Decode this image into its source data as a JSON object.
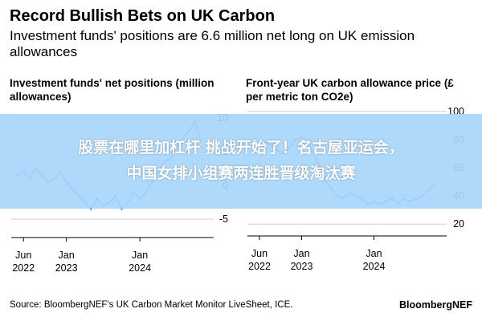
{
  "header": {
    "title": "Record Bullish Bets on UK Carbon",
    "subtitle": "Investment funds' positions are 6.6 million net long on UK emission allowances"
  },
  "banner": {
    "text": "股票在哪里加杠杆 挑战开始了！名古屋亚运会，\n中国女排小组赛两连胜晋级淘汰赛"
  },
  "footer": {
    "source": "Source: BloombergNEF's UK Carbon Market Monitor LiveSheet, ICE.",
    "brand": "BloombergNEF"
  },
  "colors": {
    "series": "#1e6cf0",
    "gridline": "#cfcfcf",
    "banner": "#a8d6fa"
  },
  "chart_data": [
    {
      "type": "line",
      "title": "Investment funds' net positions (million allowances)",
      "x_tick_labels": [
        [
          "Jun",
          "2022"
        ],
        [
          "Jan",
          "2023"
        ],
        [
          "Jan",
          "2024"
        ]
      ],
      "x_ticks": [
        "2022-06",
        "2023-01",
        "2024-01"
      ],
      "xlim": [
        "2022-04",
        "2024-12"
      ],
      "y_ticks": [
        10,
        5,
        0,
        -5
      ],
      "ylim": [
        -7,
        12
      ],
      "y_axis_side": "right",
      "series": [
        {
          "x": [
            "2022-05",
            "2022-06",
            "2022-07",
            "2022-08",
            "2022-09",
            "2022-10",
            "2022-11",
            "2022-12",
            "2023-01",
            "2023-02",
            "2023-03",
            "2023-04",
            "2023-05",
            "2023-06",
            "2023-07",
            "2023-08",
            "2023-09",
            "2023-10",
            "2023-11",
            "2023-12",
            "2024-01",
            "2024-02",
            "2024-03",
            "2024-04",
            "2024-05",
            "2024-06",
            "2024-07",
            "2024-08",
            "2024-09",
            "2024-10",
            "2024-11"
          ],
          "values": [
            1.5,
            2.0,
            1.0,
            2.5,
            1.5,
            0.5,
            1.0,
            2.0,
            0.5,
            -0.5,
            -1.5,
            -2.5,
            -3.5,
            -2.0,
            -3.0,
            -2.5,
            -1.5,
            -3.5,
            -2.5,
            -1.0,
            -2.0,
            -1.0,
            0.5,
            2.0,
            3.5,
            4.0,
            5.5,
            7.0,
            8.0,
            9.5,
            6.6
          ]
        }
      ]
    },
    {
      "type": "line",
      "title": "Front-year UK carbon allowance price (£ per metric ton CO2e)",
      "x_tick_labels": [
        [
          "Jun",
          "2022"
        ],
        [
          "Jan",
          "2023"
        ],
        [
          "Jan",
          "2024"
        ]
      ],
      "x_ticks": [
        "2022-06",
        "2023-01",
        "2024-01"
      ],
      "xlim": [
        "2022-04",
        "2024-12"
      ],
      "y_ticks": [
        100,
        80,
        60,
        40,
        20
      ],
      "ylim": [
        15,
        105
      ],
      "y_axis_side": "right",
      "series": [
        {
          "x": [
            "2022-05",
            "2022-06",
            "2022-07",
            "2022-08",
            "2022-09",
            "2022-10",
            "2022-11",
            "2022-12",
            "2023-01",
            "2023-02",
            "2023-03",
            "2023-04",
            "2023-05",
            "2023-06",
            "2023-07",
            "2023-08",
            "2023-09",
            "2023-10",
            "2023-11",
            "2023-12",
            "2024-01",
            "2024-02",
            "2024-03",
            "2024-04",
            "2024-05",
            "2024-06",
            "2024-07",
            "2024-08",
            "2024-09",
            "2024-10",
            "2024-11"
          ],
          "values": [
            70,
            74,
            78,
            76,
            72,
            70,
            74,
            80,
            82,
            78,
            70,
            60,
            50,
            45,
            40,
            38,
            42,
            40,
            38,
            34,
            36,
            34,
            36,
            38,
            35,
            38,
            36,
            38,
            40,
            44,
            48
          ]
        }
      ]
    }
  ]
}
